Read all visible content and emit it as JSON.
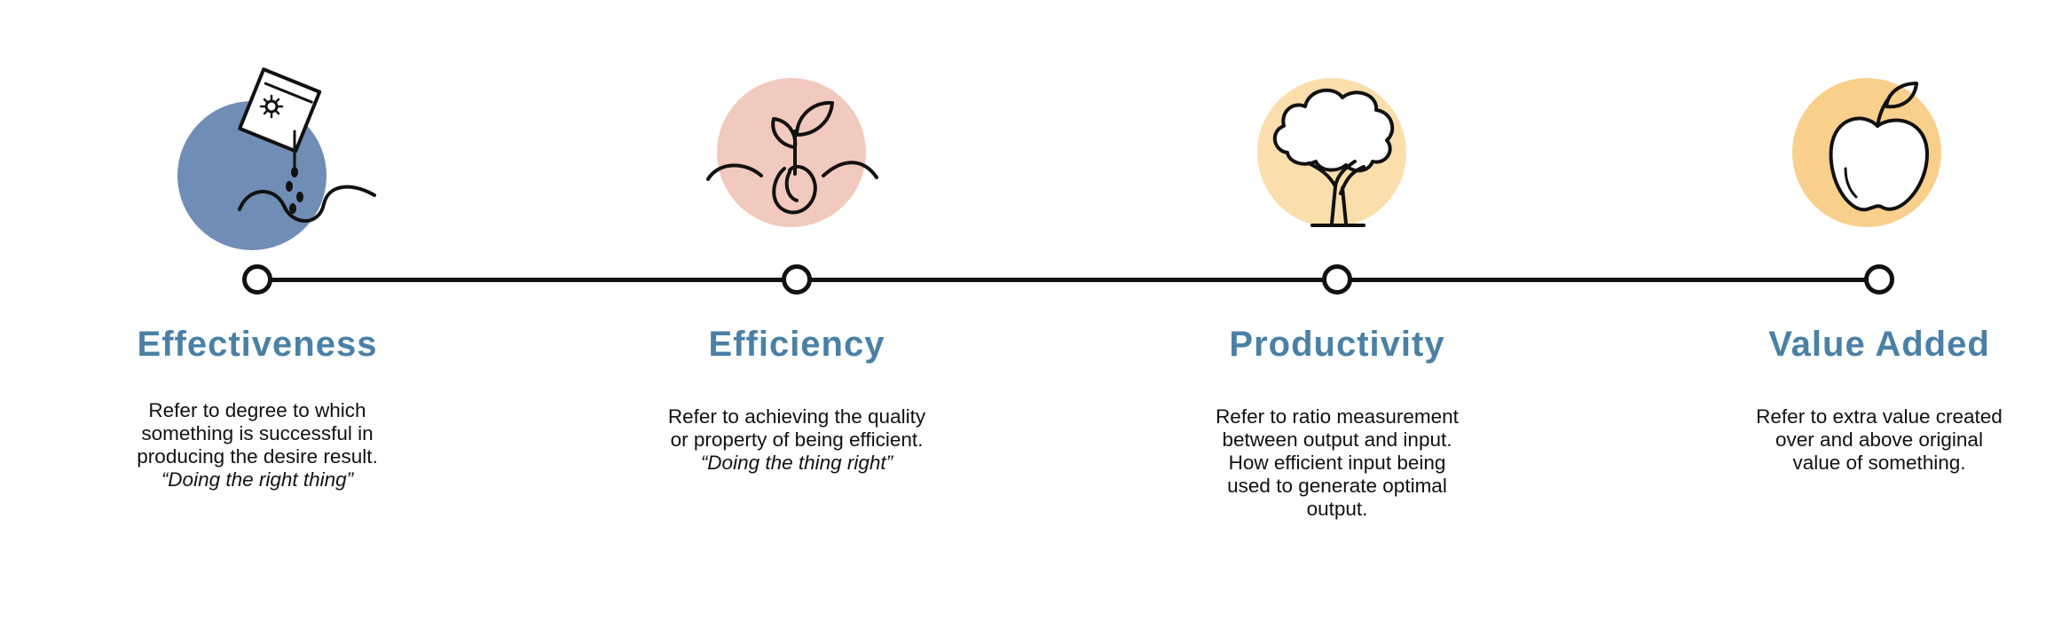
{
  "colors": {
    "title": "#4a80a6",
    "line": "#111111",
    "circle_effectiveness": "#6f8db5",
    "circle_efficiency": "#f2c9bd",
    "circle_productivity": "#fadfac",
    "circle_value_added": "#f9cf8c"
  },
  "stages": [
    {
      "icon": "seed-packet-icon",
      "title": "Effectiveness",
      "description_lines": [
        "Refer to degree to which",
        "something is successful in",
        "producing the desire result."
      ],
      "quote": "“Doing the right thing”"
    },
    {
      "icon": "sprout-icon",
      "title": "Efficiency",
      "description_lines": [
        "Refer to achieving the quality",
        "or property of being efficient."
      ],
      "quote": "“Doing the thing right”"
    },
    {
      "icon": "tree-icon",
      "title": "Productivity",
      "description_lines": [
        "Refer to ratio measurement",
        "between output and input.",
        "How efficient input being",
        "used to generate optimal",
        "output."
      ],
      "quote": ""
    },
    {
      "icon": "apple-icon",
      "title": "Value Added",
      "description_lines": [
        "Refer to extra value created",
        "over and above original",
        "value of something."
      ],
      "quote": ""
    }
  ]
}
